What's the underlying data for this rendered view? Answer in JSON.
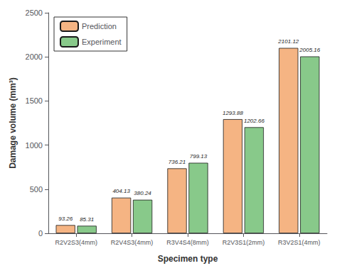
{
  "chart_data": {
    "type": "bar",
    "categories": [
      "R2V2S3(4mm)",
      "R2V4S3(4mm)",
      "R3V4S4(8mm)",
      "R2V3S1(2mm)",
      "R3V2S1(4mm)"
    ],
    "series": [
      {
        "name": "Prediction",
        "color": "#F5B483",
        "values": [
          93.26,
          404.13,
          736.21,
          1293.88,
          2101.12
        ]
      },
      {
        "name": "Experiment",
        "color": "#88C98A",
        "values": [
          85.31,
          380.24,
          799.13,
          1202.66,
          2005.16
        ]
      }
    ],
    "xlabel": "Specimen type",
    "ylabel": "Damage volume (mm³)",
    "ylim": [
      0,
      2500
    ],
    "yticks": [
      0,
      500,
      1000,
      1500,
      2000,
      2500
    ],
    "grid": false,
    "legend": "upper left",
    "data_labels": true
  }
}
